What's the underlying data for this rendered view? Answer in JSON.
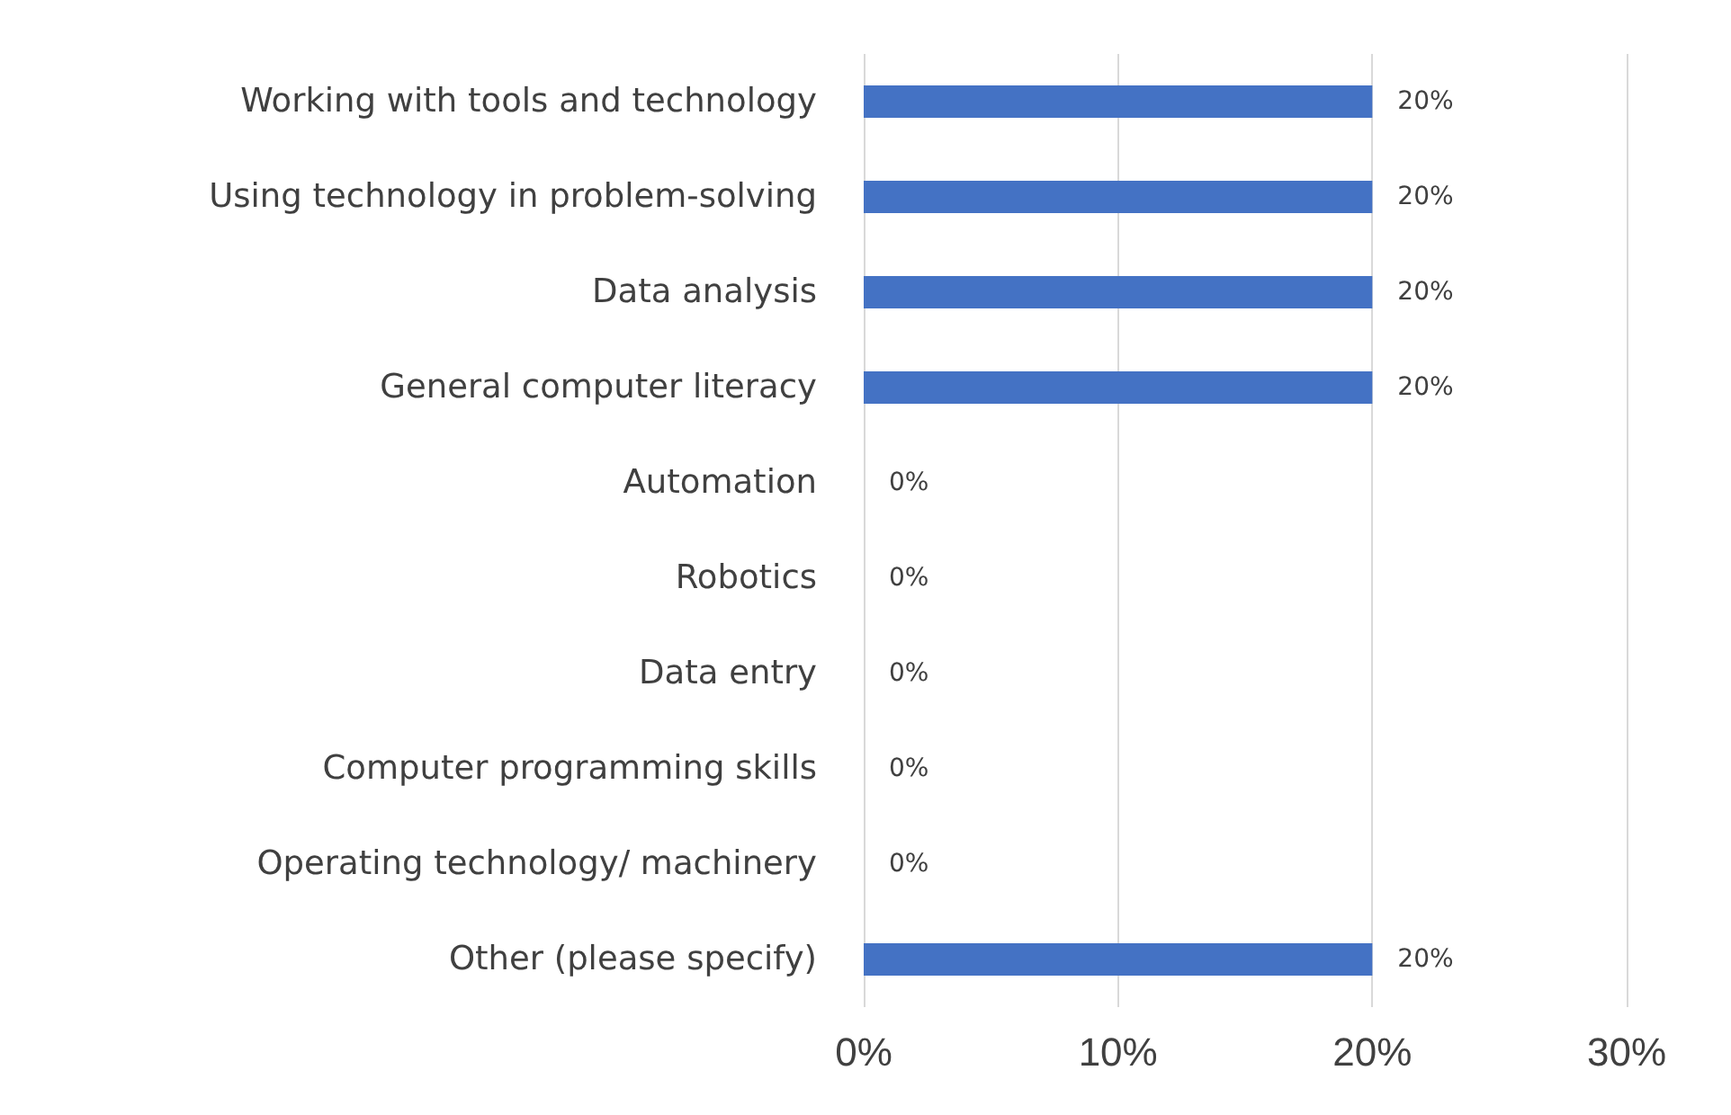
{
  "chart_data": {
    "type": "bar",
    "orientation": "horizontal",
    "categories": [
      "Working with tools and technology",
      "Using technology in problem-solving",
      "Data analysis",
      "General computer literacy",
      "Automation",
      "Robotics",
      "Data entry",
      "Computer programming skills",
      "Operating technology/ machinery",
      "Other (please specify)"
    ],
    "values": [
      20,
      20,
      20,
      20,
      0,
      0,
      0,
      0,
      0,
      20
    ],
    "value_labels": [
      "20%",
      "20%",
      "20%",
      "20%",
      "0%",
      "0%",
      "0%",
      "0%",
      "0%",
      "20%"
    ],
    "color": "#4472c4",
    "xlim": [
      0,
      30
    ],
    "xticks": [
      {
        "value": 0,
        "label": "0%"
      },
      {
        "value": 10,
        "label": "10%"
      },
      {
        "value": 20,
        "label": "20%"
      },
      {
        "value": 30,
        "label": "30%"
      }
    ],
    "grid": "x"
  }
}
